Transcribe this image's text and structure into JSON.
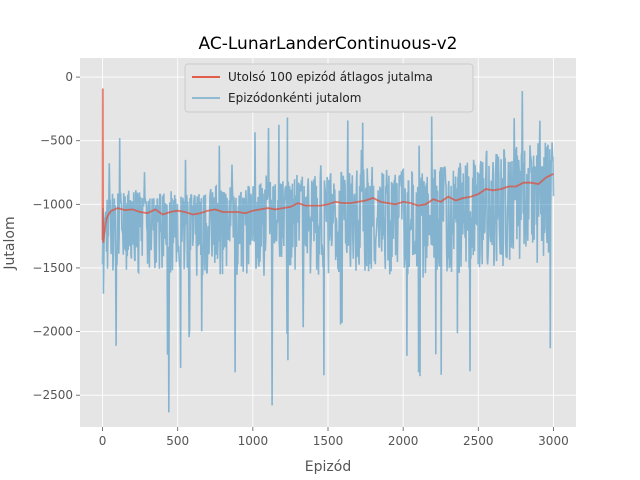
{
  "chart_data": {
    "type": "line",
    "title": "AC-LunarLanderContinuous-v2",
    "xlabel": "Epizód",
    "ylabel": "Jutalom",
    "xlim": [
      -150,
      3150
    ],
    "ylim": [
      -2750,
      150
    ],
    "xticks": [
      0,
      500,
      1000,
      1500,
      2000,
      2500,
      3000
    ],
    "yticks": [
      0,
      -500,
      -1000,
      -1500,
      -2000,
      -2500
    ],
    "grid": true,
    "legend_position": "top-center",
    "series": [
      {
        "name": "Utolsó 100 epizód átlagos jutalma",
        "color": "#e24a33",
        "x": [
          0,
          2,
          4,
          6,
          10,
          15,
          20,
          30,
          40,
          50,
          60,
          80,
          100,
          150,
          200,
          250,
          300,
          350,
          400,
          450,
          500,
          550,
          600,
          650,
          700,
          750,
          800,
          850,
          900,
          950,
          1000,
          1050,
          1100,
          1150,
          1200,
          1250,
          1300,
          1350,
          1400,
          1450,
          1500,
          1550,
          1600,
          1650,
          1700,
          1750,
          1800,
          1850,
          1900,
          1950,
          2000,
          2050,
          2100,
          2150,
          2200,
          2250,
          2300,
          2350,
          2400,
          2450,
          2500,
          2550,
          2600,
          2650,
          2700,
          2750,
          2800,
          2850,
          2900,
          2950,
          3000
        ],
        "values": [
          -1280,
          -90,
          -1290,
          -1300,
          -1250,
          -1200,
          -1150,
          -1100,
          -1080,
          -1060,
          -1050,
          -1040,
          -1030,
          -1045,
          -1040,
          -1060,
          -1070,
          -1040,
          -1080,
          -1060,
          -1050,
          -1060,
          -1080,
          -1070,
          -1050,
          -1040,
          -1060,
          -1060,
          -1060,
          -1070,
          -1050,
          -1040,
          -1030,
          -1040,
          -1030,
          -1020,
          -990,
          -1010,
          -1010,
          -1010,
          -1000,
          -980,
          -990,
          -990,
          -980,
          -970,
          -950,
          -980,
          -990,
          -1000,
          -980,
          -990,
          -1010,
          -1000,
          -960,
          -980,
          -940,
          -970,
          -950,
          -940,
          -920,
          -880,
          -890,
          -880,
          -860,
          -860,
          -830,
          -830,
          -840,
          -790,
          -760
        ]
      },
      {
        "name": "Epizódonkénti jutalom",
        "color": "#348abd",
        "x": [],
        "values": []
      }
    ]
  }
}
